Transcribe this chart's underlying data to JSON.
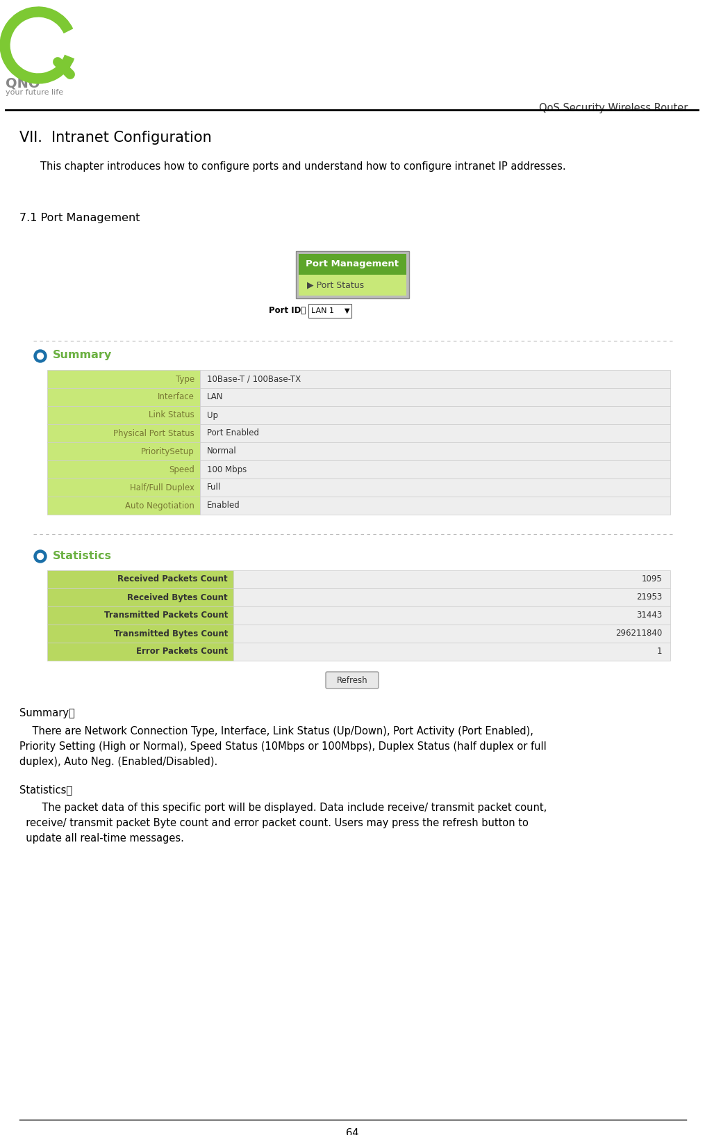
{
  "bg_color": "#ffffff",
  "header_text": "QoS Security Wireless Router",
  "chapter_title": "VII.  Intranet Configuration",
  "chapter_intro": "This chapter introduces how to configure ports and understand how to configure intranet IP addresses.",
  "section_title": "7.1 Port Management",
  "port_management_label": "Port Management",
  "port_status_label": "▶ Port Status",
  "summary_title": "Summary",
  "summary_rows": [
    [
      "Type",
      "10Base-T / 100Base-TX"
    ],
    [
      "Interface",
      "LAN"
    ],
    [
      "Link Status",
      "Up"
    ],
    [
      "Physical Port Status",
      "Port Enabled"
    ],
    [
      "PrioritySetup",
      "Normal"
    ],
    [
      "Speed",
      "100 Mbps"
    ],
    [
      "Half/Full Duplex",
      "Full"
    ],
    [
      "Auto Negotiation",
      "Enabled"
    ]
  ],
  "statistics_title": "Statistics",
  "statistics_rows": [
    [
      "Received Packets Count",
      "1095"
    ],
    [
      "Received Bytes Count",
      "21953"
    ],
    [
      "Transmitted Packets Count",
      "31443"
    ],
    [
      "Transmitted Bytes Count",
      "296211840"
    ],
    [
      "Error Packets Count",
      "1"
    ]
  ],
  "refresh_label": "Refresh",
  "summary_label_colon": "Summary：",
  "statistics_label_colon": "Statistics：",
  "footer_page": "64",
  "green_header_color": "#5da52a",
  "green_light_color": "#c8e878",
  "gray_border_color": "#999999",
  "blue_icon_color": "#1a6fa8",
  "green_title_color": "#6ab040",
  "dotted_line_color": "#bbbbbb",
  "label_col_color": "#c8e878",
  "stats_label_col_color": "#b8d860",
  "table_val_bg": "#eeeeee",
  "table_border": "#cccccc"
}
